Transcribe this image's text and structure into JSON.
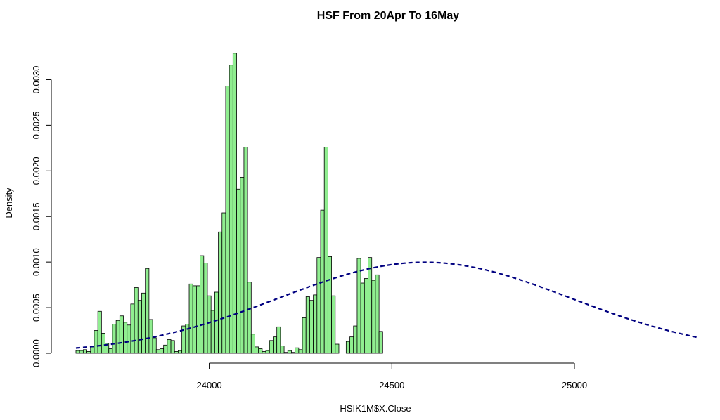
{
  "chart_data": {
    "type": "bar",
    "title": "HSF From 20Apr To 16May",
    "xlabel": "HSIK1M$X.Close",
    "ylabel": "Density",
    "xlim": [
      23635,
      25335
    ],
    "ylim": [
      0,
      0.0033
    ],
    "x_ticks": [
      24000,
      24500,
      25000
    ],
    "y_ticks": [
      0.0,
      0.0005,
      0.001,
      0.0015,
      0.002,
      0.0025,
      0.003
    ],
    "x_tick_labels": [
      "24000",
      "24500",
      "25000"
    ],
    "y_tick_labels": [
      "0.0000",
      "0.0005",
      "0.0010",
      "0.0015",
      "0.0020",
      "0.0025",
      "0.0030"
    ],
    "bin_start": 23635,
    "bin_width": 10,
    "bar_color": "#90ee90",
    "values": [
      3e-05,
      3e-05,
      4e-05,
      2e-05,
      7e-05,
      0.00025,
      0.00046,
      0.00022,
      0.00011,
      5e-05,
      0.00032,
      0.00036,
      0.00041,
      0.00034,
      0.00031,
      0.00054,
      0.00072,
      0.00058,
      0.00066,
      0.00093,
      0.00037,
      0.00017,
      4e-05,
      5e-05,
      9e-05,
      0.00015,
      0.00014,
      2e-05,
      3e-05,
      0.0003,
      0.00032,
      0.00076,
      0.00074,
      0.00074,
      0.00107,
      0.00099,
      0.00063,
      0.00047,
      0.00067,
      0.00133,
      0.00154,
      0.00293,
      0.00316,
      0.00329,
      0.0018,
      0.00193,
      0.00226,
      0.00078,
      0.00021,
      7e-05,
      5e-05,
      2e-05,
      3e-05,
      0.00014,
      0.00018,
      0.00029,
      8e-05,
      1e-05,
      3e-05,
      1e-05,
      6e-05,
      4e-05,
      0.00039,
      0.00062,
      0.00058,
      0.00064,
      0.00105,
      0.00157,
      0.00226,
      0.00106,
      0.00063,
      0.0001,
      0.0,
      0.0,
      0.00013,
      0.00018,
      0.0003,
      0.00104,
      0.00077,
      0.00082,
      0.00105,
      0.0008,
      0.00086,
      0.00024
    ],
    "density_curve": {
      "type": "normal",
      "mean": 24590,
      "sd": 400,
      "color": "#000080",
      "style": "dashed"
    }
  }
}
